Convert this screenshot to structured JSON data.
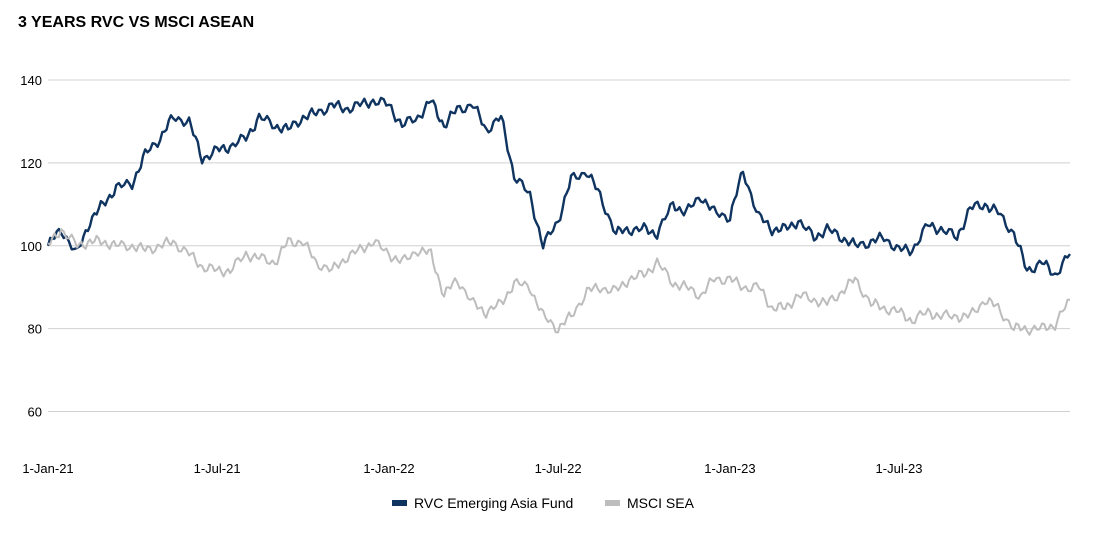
{
  "chart_data": {
    "type": "line",
    "title": "3 YEARS RVC VS MSCI ASEAN",
    "xlabel": "",
    "ylabel": "",
    "ylim": [
      50,
      140
    ],
    "yticks": [
      60,
      80,
      100,
      120,
      140
    ],
    "xticks": [
      "1-Jan-21",
      "1-Jul-21",
      "1-Jan-22",
      "1-Jul-22",
      "1-Jan-23",
      "1-Jul-23"
    ],
    "x_range": [
      "2021-01-01",
      "2023-12-31"
    ],
    "grid": true,
    "legend_position": "bottom",
    "x": [
      "2021-01-01",
      "2021-01-15",
      "2021-02-01",
      "2021-02-15",
      "2021-03-01",
      "2021-03-15",
      "2021-04-01",
      "2021-04-15",
      "2021-05-01",
      "2021-05-15",
      "2021-06-01",
      "2021-06-15",
      "2021-07-01",
      "2021-07-15",
      "2021-08-01",
      "2021-08-15",
      "2021-09-01",
      "2021-09-15",
      "2021-10-01",
      "2021-10-15",
      "2021-11-01",
      "2021-11-15",
      "2021-12-01",
      "2021-12-15",
      "2022-01-01",
      "2022-01-15",
      "2022-02-01",
      "2022-02-15",
      "2022-03-01",
      "2022-03-15",
      "2022-04-01",
      "2022-04-15",
      "2022-05-01",
      "2022-05-15",
      "2022-06-01",
      "2022-06-15",
      "2022-07-01",
      "2022-07-15",
      "2022-08-01",
      "2022-08-15",
      "2022-09-01",
      "2022-09-15",
      "2022-10-01",
      "2022-10-15",
      "2022-11-01",
      "2022-11-15",
      "2022-12-01",
      "2022-12-15",
      "2023-01-01",
      "2023-01-15",
      "2023-02-01",
      "2023-02-15",
      "2023-03-01",
      "2023-03-15",
      "2023-04-01",
      "2023-04-15",
      "2023-05-01",
      "2023-05-15",
      "2023-06-01",
      "2023-06-15",
      "2023-07-01",
      "2023-07-15",
      "2023-08-01",
      "2023-08-15",
      "2023-09-01",
      "2023-09-15",
      "2023-10-01",
      "2023-10-15",
      "2023-11-01",
      "2023-11-15",
      "2023-12-01",
      "2023-12-15",
      "2023-12-31"
    ],
    "series": [
      {
        "name": "RVC Emerging Asia Fund",
        "color": "#0f3460",
        "values": [
          100,
          104,
          98,
          106,
          110,
          114,
          115,
          122,
          126,
          131,
          130,
          121,
          123,
          124,
          126,
          131,
          129,
          128,
          131,
          132,
          134,
          133,
          134,
          135,
          134,
          129,
          131,
          135,
          129,
          133,
          134,
          128,
          131,
          117,
          112,
          100,
          106,
          116,
          118,
          112,
          103,
          104,
          104,
          103,
          110,
          108,
          112,
          108,
          107,
          118,
          107,
          104,
          104,
          106,
          102,
          104,
          102,
          100,
          101,
          102,
          99,
          99,
          105,
          104,
          102,
          109,
          110,
          108,
          103,
          94,
          96,
          93,
          98
        ]
      },
      {
        "name": "MSCI SEA",
        "color": "#bdbdbd",
        "values": [
          100,
          104,
          100,
          101,
          101,
          100,
          100,
          99,
          100,
          101,
          98,
          95,
          94,
          94,
          98,
          97,
          96,
          101,
          101,
          96,
          94,
          97,
          99,
          101,
          98,
          96,
          99,
          98,
          88,
          92,
          86,
          84,
          86,
          91,
          90,
          83,
          80,
          83,
          89,
          90,
          89,
          92,
          93,
          96,
          91,
          90,
          88,
          92,
          92,
          90,
          90,
          85,
          85,
          88,
          87,
          86,
          89,
          92,
          86,
          85,
          84,
          82,
          84,
          83,
          83,
          83,
          87,
          85,
          80,
          80,
          80,
          81,
          87
        ]
      }
    ]
  }
}
